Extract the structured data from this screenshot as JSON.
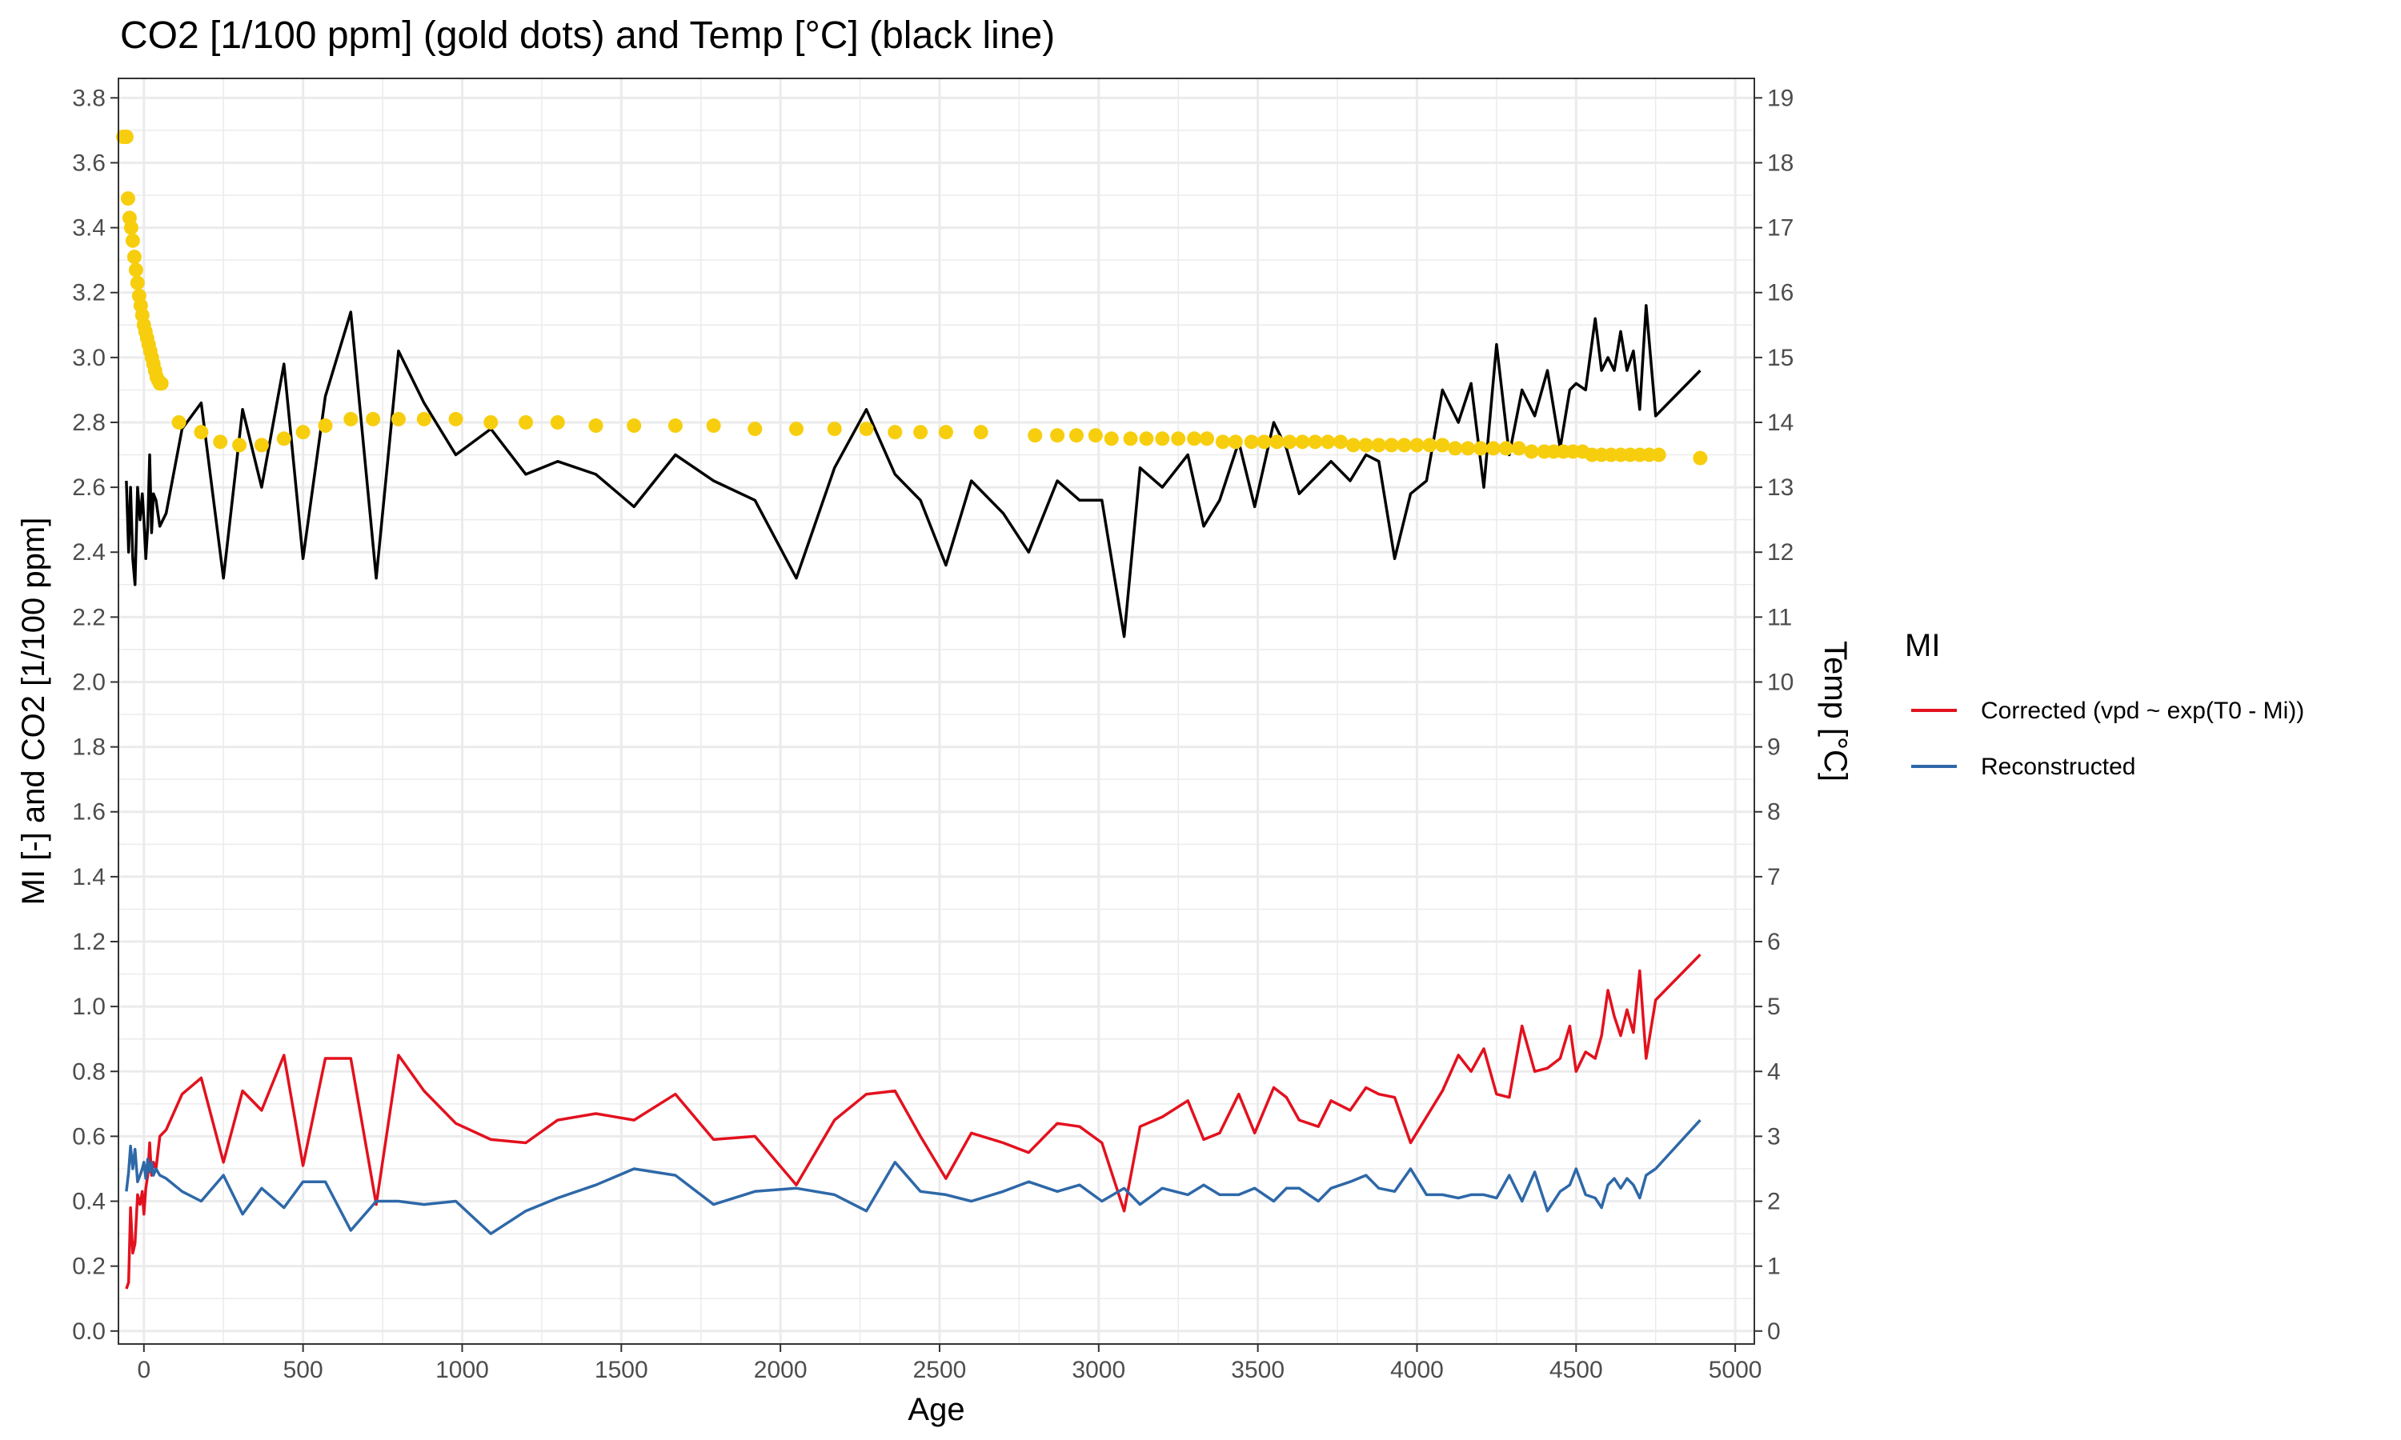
{
  "chart_data": {
    "type": "line",
    "title": "CO2 [1/100 ppm] (gold dots) and Temp [°C] (black line)",
    "xlabel": "Age",
    "ylabel": "MI [-] and CO2 [1/100 ppm]",
    "y2label": "Temp [°C]",
    "xlim": [
      -80,
      5060
    ],
    "ylim": [
      -0.04,
      3.86
    ],
    "y2lim": [
      -0.2,
      19.3
    ],
    "x_ticks": [
      0,
      500,
      1000,
      1500,
      2000,
      2500,
      3000,
      3500,
      4000,
      4500,
      5000
    ],
    "x_tick_labels": [
      "0",
      "500",
      "1000",
      "1500",
      "2000",
      "2500",
      "3000",
      "3500",
      "4000",
      "4500",
      "5000"
    ],
    "y_ticks": [
      0.0,
      0.2,
      0.4,
      0.6,
      0.8,
      1.0,
      1.2,
      1.4,
      1.6,
      1.8,
      2.0,
      2.2,
      2.4,
      2.6,
      2.8,
      3.0,
      3.2,
      3.4,
      3.6,
      3.8
    ],
    "y_tick_labels": [
      "0.0",
      "0.2",
      "0.4",
      "0.6",
      "0.8",
      "1.0",
      "1.2",
      "1.4",
      "1.6",
      "1.8",
      "2.0",
      "2.2",
      "2.4",
      "2.6",
      "2.8",
      "3.0",
      "3.2",
      "3.4",
      "3.6",
      "3.8"
    ],
    "y2_ticks": [
      0,
      1,
      2,
      3,
      4,
      5,
      6,
      7,
      8,
      9,
      10,
      11,
      12,
      13,
      14,
      15,
      16,
      17,
      18,
      19
    ],
    "y2_tick_labels": [
      "0",
      "1",
      "2",
      "3",
      "4",
      "5",
      "6",
      "7",
      "8",
      "9",
      "10",
      "11",
      "12",
      "13",
      "14",
      "15",
      "16",
      "17",
      "18",
      "19"
    ],
    "grid": true,
    "legend": {
      "title": "MI",
      "position": "right",
      "entries": [
        {
          "label": "Corrected (vpd ~ exp(T0 - Mi))",
          "color": "#e3111e"
        },
        {
          "label": "Reconstructed",
          "color": "#2e68a8"
        }
      ]
    },
    "colors": {
      "co2": "#f7ce0e",
      "temp": "#000000",
      "corrected": "#e3111e",
      "reconstructed": "#2e68a8",
      "grid": "#ebebeb",
      "panel_border": "#333333"
    },
    "series": [
      {
        "key": "corrected",
        "axis": "left",
        "style": "line",
        "x": [
          -55,
          -48,
          -42,
          -35,
          -28,
          -20,
          -12,
          -5,
          0,
          6,
          12,
          18,
          24,
          30,
          38,
          50,
          70,
          120,
          180,
          250,
          310,
          370,
          440,
          500,
          570,
          650,
          730,
          800,
          880,
          980,
          1090,
          1200,
          1300,
          1420,
          1540,
          1670,
          1790,
          1920,
          2050,
          2170,
          2270,
          2360,
          2440,
          2520,
          2600,
          2700,
          2780,
          2870,
          2940,
          3010,
          3080,
          3130,
          3200,
          3280,
          3330,
          3380,
          3440,
          3490,
          3550,
          3590,
          3630,
          3690,
          3730,
          3790,
          3840,
          3880,
          3930,
          3980,
          4030,
          4080,
          4130,
          4170,
          4210,
          4250,
          4290,
          4330,
          4370,
          4410,
          4450,
          4480,
          4500,
          4530,
          4560,
          4580,
          4600,
          4620,
          4640,
          4660,
          4680,
          4700,
          4720,
          4750,
          4890
        ],
        "y": [
          0.13,
          0.15,
          0.38,
          0.24,
          0.27,
          0.42,
          0.39,
          0.43,
          0.36,
          0.44,
          0.48,
          0.58,
          0.48,
          0.52,
          0.5,
          0.6,
          0.62,
          0.73,
          0.78,
          0.52,
          0.74,
          0.68,
          0.85,
          0.51,
          0.84,
          0.84,
          0.39,
          0.85,
          0.74,
          0.64,
          0.59,
          0.58,
          0.65,
          0.67,
          0.65,
          0.73,
          0.59,
          0.6,
          0.45,
          0.65,
          0.73,
          0.74,
          0.6,
          0.47,
          0.61,
          0.58,
          0.55,
          0.64,
          0.63,
          0.58,
          0.37,
          0.63,
          0.66,
          0.71,
          0.59,
          0.61,
          0.73,
          0.61,
          0.75,
          0.72,
          0.65,
          0.63,
          0.71,
          0.68,
          0.75,
          0.73,
          0.72,
          0.58,
          0.66,
          0.74,
          0.85,
          0.8,
          0.87,
          0.73,
          0.72,
          0.94,
          0.8,
          0.81,
          0.84,
          0.94,
          0.8,
          0.86,
          0.84,
          0.91,
          1.05,
          0.97,
          0.91,
          0.99,
          0.92,
          1.11,
          0.84,
          1.02,
          1.16
        ]
      },
      {
        "key": "reconstructed",
        "axis": "left",
        "style": "line",
        "x": [
          -55,
          -48,
          -42,
          -35,
          -28,
          -20,
          -12,
          -5,
          0,
          6,
          12,
          18,
          24,
          30,
          38,
          50,
          70,
          120,
          180,
          250,
          310,
          370,
          440,
          500,
          570,
          650,
          730,
          800,
          880,
          980,
          1090,
          1200,
          1300,
          1420,
          1540,
          1670,
          1790,
          1920,
          2050,
          2170,
          2270,
          2360,
          2440,
          2520,
          2600,
          2700,
          2780,
          2870,
          2940,
          3010,
          3080,
          3130,
          3200,
          3280,
          3330,
          3380,
          3440,
          3490,
          3550,
          3590,
          3630,
          3690,
          3730,
          3790,
          3840,
          3880,
          3930,
          3980,
          4030,
          4080,
          4130,
          4170,
          4210,
          4250,
          4290,
          4330,
          4370,
          4410,
          4450,
          4480,
          4500,
          4530,
          4560,
          4580,
          4600,
          4620,
          4640,
          4660,
          4680,
          4700,
          4720,
          4750,
          4890
        ],
        "y": [
          0.43,
          0.49,
          0.57,
          0.5,
          0.56,
          0.46,
          0.48,
          0.5,
          0.52,
          0.47,
          0.53,
          0.49,
          0.52,
          0.48,
          0.5,
          0.48,
          0.47,
          0.43,
          0.4,
          0.48,
          0.36,
          0.44,
          0.38,
          0.46,
          0.46,
          0.31,
          0.4,
          0.4,
          0.39,
          0.4,
          0.3,
          0.37,
          0.41,
          0.45,
          0.5,
          0.48,
          0.39,
          0.43,
          0.44,
          0.42,
          0.37,
          0.52,
          0.43,
          0.42,
          0.4,
          0.43,
          0.46,
          0.43,
          0.45,
          0.4,
          0.44,
          0.39,
          0.44,
          0.42,
          0.45,
          0.42,
          0.42,
          0.44,
          0.4,
          0.44,
          0.44,
          0.4,
          0.44,
          0.46,
          0.48,
          0.44,
          0.43,
          0.5,
          0.42,
          0.42,
          0.41,
          0.42,
          0.42,
          0.41,
          0.48,
          0.4,
          0.49,
          0.37,
          0.43,
          0.45,
          0.5,
          0.42,
          0.41,
          0.38,
          0.45,
          0.47,
          0.44,
          0.47,
          0.45,
          0.41,
          0.48,
          0.5,
          0.65
        ]
      },
      {
        "key": "temp",
        "axis": "right",
        "style": "line",
        "x": [
          -55,
          -48,
          -42,
          -35,
          -28,
          -20,
          -12,
          -5,
          0,
          6,
          12,
          18,
          24,
          30,
          38,
          50,
          70,
          120,
          180,
          250,
          310,
          370,
          440,
          500,
          570,
          650,
          730,
          800,
          880,
          980,
          1090,
          1200,
          1300,
          1420,
          1540,
          1670,
          1790,
          1920,
          2050,
          2170,
          2270,
          2360,
          2440,
          2520,
          2600,
          2700,
          2780,
          2870,
          2940,
          3010,
          3080,
          3130,
          3200,
          3280,
          3330,
          3380,
          3440,
          3490,
          3550,
          3590,
          3630,
          3690,
          3730,
          3790,
          3840,
          3880,
          3930,
          3980,
          4030,
          4080,
          4130,
          4170,
          4210,
          4250,
          4290,
          4330,
          4370,
          4410,
          4450,
          4480,
          4500,
          4530,
          4560,
          4580,
          4600,
          4620,
          4640,
          4660,
          4680,
          4700,
          4720,
          4750,
          4890
        ],
        "y": [
          13.1,
          12.0,
          13.0,
          11.9,
          11.5,
          13.0,
          12.5,
          12.9,
          12.5,
          11.9,
          12.4,
          13.5,
          12.3,
          12.9,
          12.8,
          12.4,
          12.6,
          13.9,
          14.3,
          11.6,
          14.2,
          13.0,
          14.9,
          11.9,
          14.4,
          15.7,
          11.6,
          15.1,
          14.3,
          13.5,
          13.9,
          13.2,
          13.4,
          13.2,
          12.7,
          13.5,
          13.1,
          12.8,
          11.6,
          13.3,
          14.2,
          13.2,
          12.8,
          11.8,
          13.1,
          12.6,
          12.0,
          13.1,
          12.8,
          12.8,
          10.7,
          13.3,
          13.0,
          13.5,
          12.4,
          12.8,
          13.7,
          12.7,
          14.0,
          13.6,
          12.9,
          13.2,
          13.4,
          13.1,
          13.5,
          13.4,
          11.9,
          12.9,
          13.1,
          14.5,
          14.0,
          14.6,
          13.0,
          15.2,
          13.5,
          14.5,
          14.1,
          14.8,
          13.6,
          14.5,
          14.6,
          14.5,
          15.6,
          14.8,
          15.0,
          14.8,
          15.4,
          14.8,
          15.1,
          14.2,
          15.8,
          14.1,
          14.8
        ]
      },
      {
        "key": "co2",
        "axis": "left",
        "style": "points",
        "x": [
          -65,
          -55,
          -50,
          -45,
          -40,
          -35,
          -30,
          -25,
          -20,
          -15,
          -10,
          -5,
          0,
          5,
          10,
          15,
          20,
          25,
          30,
          35,
          40,
          45,
          50,
          55,
          110,
          180,
          240,
          300,
          370,
          440,
          500,
          570,
          650,
          720,
          800,
          880,
          980,
          1090,
          1200,
          1300,
          1420,
          1540,
          1670,
          1790,
          1920,
          2050,
          2170,
          2270,
          2360,
          2440,
          2520,
          2630,
          2800,
          2870,
          2930,
          2990,
          3040,
          3100,
          3150,
          3200,
          3250,
          3300,
          3340,
          3390,
          3430,
          3480,
          3520,
          3560,
          3600,
          3640,
          3680,
          3720,
          3760,
          3800,
          3840,
          3880,
          3920,
          3960,
          4000,
          4040,
          4080,
          4120,
          4160,
          4200,
          4240,
          4280,
          4320,
          4360,
          4400,
          4430,
          4460,
          4490,
          4520,
          4550,
          4580,
          4610,
          4640,
          4670,
          4700,
          4730,
          4760,
          4890
        ],
        "y": [
          3.68,
          3.68,
          3.49,
          3.43,
          3.4,
          3.36,
          3.31,
          3.27,
          3.23,
          3.19,
          3.16,
          3.13,
          3.1,
          3.08,
          3.06,
          3.04,
          3.02,
          3.0,
          2.98,
          2.96,
          2.94,
          2.93,
          2.92,
          2.92,
          2.8,
          2.77,
          2.74,
          2.73,
          2.73,
          2.75,
          2.77,
          2.79,
          2.81,
          2.81,
          2.81,
          2.81,
          2.81,
          2.8,
          2.8,
          2.8,
          2.79,
          2.79,
          2.79,
          2.79,
          2.78,
          2.78,
          2.78,
          2.78,
          2.77,
          2.77,
          2.77,
          2.77,
          2.76,
          2.76,
          2.76,
          2.76,
          2.75,
          2.75,
          2.75,
          2.75,
          2.75,
          2.75,
          2.75,
          2.74,
          2.74,
          2.74,
          2.74,
          2.74,
          2.74,
          2.74,
          2.74,
          2.74,
          2.74,
          2.73,
          2.73,
          2.73,
          2.73,
          2.73,
          2.73,
          2.73,
          2.73,
          2.72,
          2.72,
          2.72,
          2.72,
          2.72,
          2.72,
          2.71,
          2.71,
          2.71,
          2.71,
          2.71,
          2.71,
          2.7,
          2.7,
          2.7,
          2.7,
          2.7,
          2.7,
          2.7,
          2.7,
          2.69
        ]
      }
    ]
  }
}
